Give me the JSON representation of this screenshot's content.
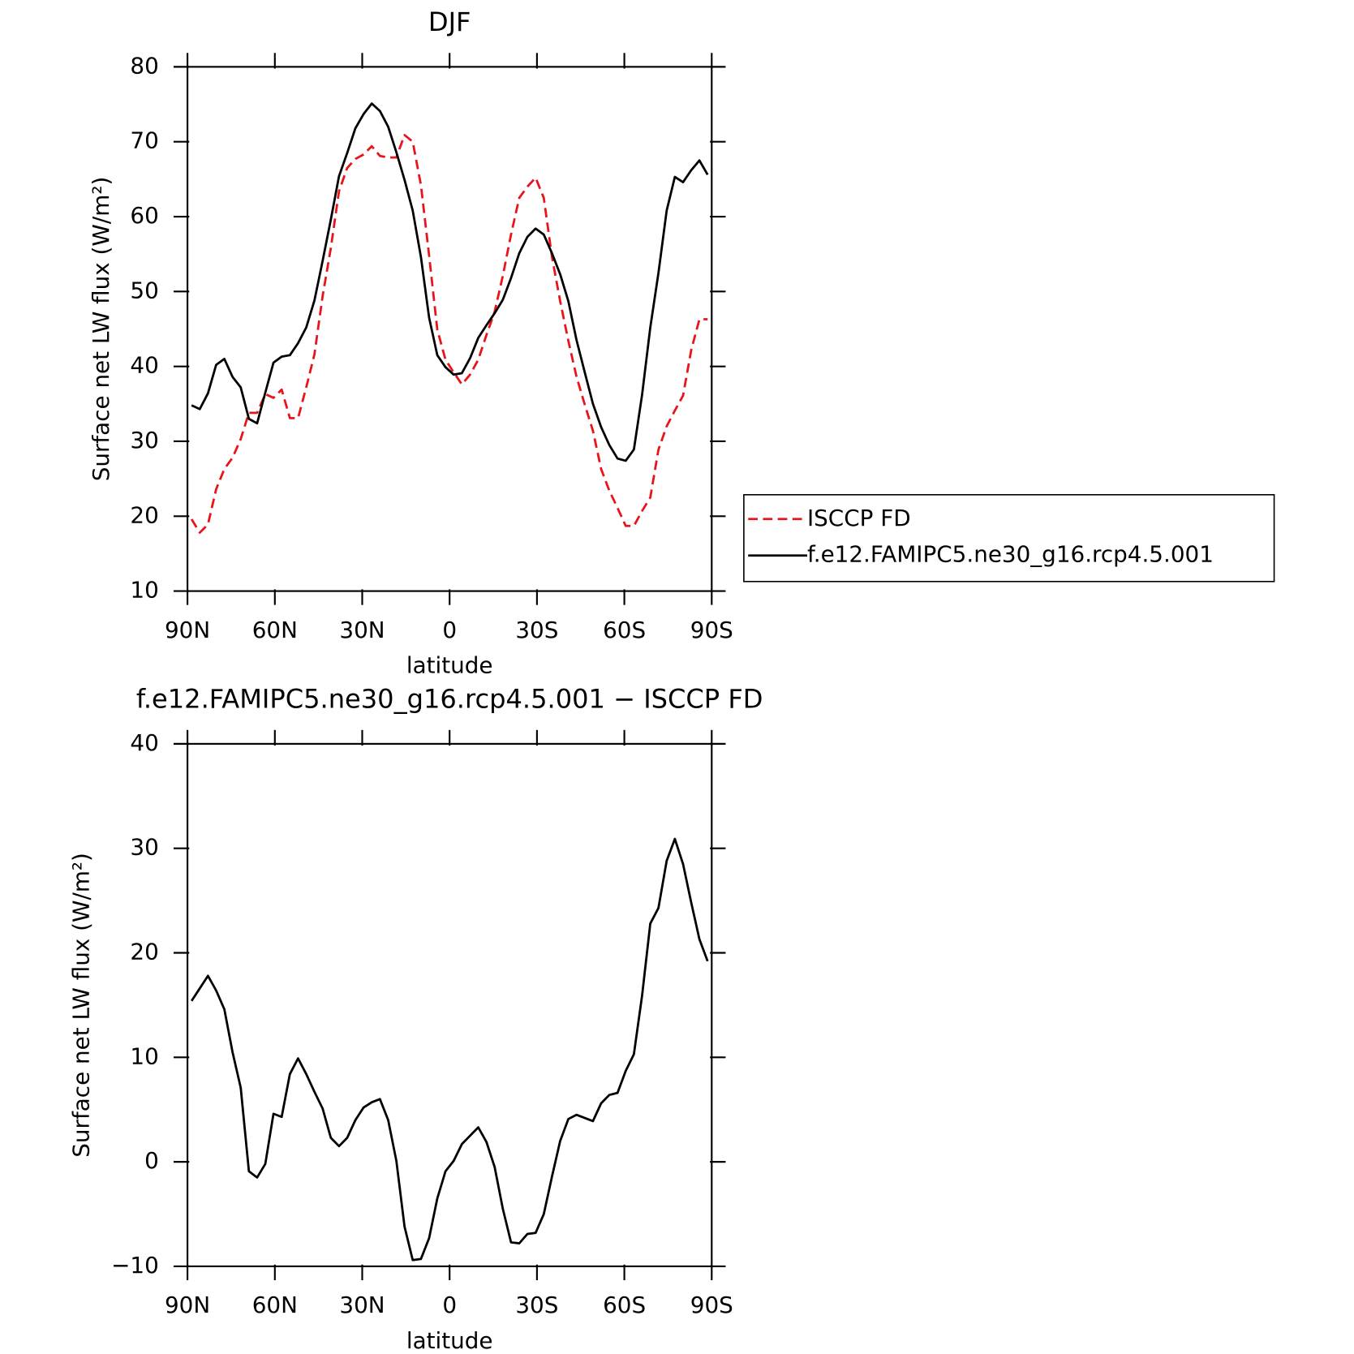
{
  "chart_data": [
    {
      "type": "line",
      "title": "DJF",
      "xlabel": "latitude",
      "ylabel": "Surface net LW flux (W/m²)",
      "x": [
        88.59,
        85.78,
        82.97,
        80.16,
        77.34,
        74.53,
        71.72,
        68.91,
        66.09,
        63.28,
        60.47,
        57.66,
        54.84,
        52.03,
        49.22,
        46.41,
        43.59,
        40.78,
        37.97,
        35.16,
        32.34,
        29.53,
        26.72,
        23.91,
        21.09,
        18.28,
        15.47,
        12.66,
        9.84,
        7.03,
        4.22,
        1.41,
        -1.41,
        -4.22,
        -7.03,
        -9.84,
        -12.66,
        -15.47,
        -18.28,
        -21.09,
        -23.91,
        -26.72,
        -29.53,
        -32.34,
        -35.16,
        -37.97,
        -40.78,
        -43.59,
        -46.41,
        -49.22,
        -52.03,
        -54.84,
        -57.66,
        -60.47,
        -63.28,
        -66.09,
        -68.91,
        -71.72,
        -74.53,
        -77.34,
        -80.16,
        -82.97,
        -85.78,
        -88.59
      ],
      "series": [
        {
          "name": "ISCCP FD",
          "color": "#e8141b",
          "linestyle": "dashed",
          "values": [
            19.6,
            17.8,
            18.9,
            23.6,
            26.3,
            27.8,
            30.3,
            33.8,
            33.8,
            36.3,
            35.8,
            36.9,
            33.1,
            33.1,
            37.2,
            41.6,
            49.4,
            55.8,
            63.4,
            66.5,
            67.7,
            68.3,
            69.4,
            68.1,
            67.9,
            67.9,
            70.9,
            70.0,
            64.2,
            54.8,
            44.9,
            40.9,
            39.2,
            37.6,
            38.9,
            40.9,
            44.2,
            47.3,
            52.1,
            57.6,
            62.5,
            64.0,
            65.2,
            62.5,
            54.6,
            48.7,
            43.4,
            38.6,
            34.9,
            31.4,
            26.3,
            23.4,
            21.1,
            18.7,
            18.7,
            20.7,
            22.5,
            28.9,
            32.0,
            34.1,
            36.1,
            42.2,
            46.3,
            46.3
          ]
        },
        {
          "name": "f.e12.FAMIPC5.ne30_g16.rcp4.5.001",
          "color": "#000000",
          "linestyle": "solid",
          "values": [
            34.8,
            34.3,
            36.4,
            40.2,
            41.0,
            38.6,
            37.2,
            33.0,
            32.4,
            36.5,
            40.5,
            41.3,
            41.5,
            43.1,
            45.2,
            48.8,
            54.1,
            59.6,
            65.4,
            68.5,
            71.8,
            73.7,
            75.1,
            74.1,
            72.0,
            68.6,
            64.9,
            60.8,
            54.6,
            46.5,
            41.5,
            39.9,
            38.9,
            39.1,
            41.1,
            43.8,
            45.5,
            47.1,
            48.9,
            51.8,
            55.1,
            57.3,
            58.4,
            57.6,
            55.1,
            52.3,
            48.7,
            43.5,
            39.2,
            35.0,
            31.9,
            29.5,
            27.7,
            27.4,
            28.9,
            36.2,
            45.2,
            52.5,
            60.8,
            65.3,
            64.6,
            66.2,
            67.5,
            65.6
          ]
        }
      ],
      "xlim": [
        90,
        -90
      ],
      "xticks": [
        {
          "value": 90,
          "label": "90N"
        },
        {
          "value": 60,
          "label": "60N"
        },
        {
          "value": 30,
          "label": "30N"
        },
        0,
        {
          "value": -30,
          "label": "30S"
        },
        {
          "value": -60,
          "label": "60S"
        },
        {
          "value": -90,
          "label": "90S"
        }
      ],
      "ylim": [
        10,
        80
      ],
      "yticks": [
        10,
        20,
        30,
        40,
        50,
        60,
        70,
        80
      ],
      "legend": "outside-right"
    },
    {
      "type": "line",
      "title": "f.e12.FAMIPC5.ne30_g16.rcp4.5.001 − ISCCP FD",
      "xlabel": "latitude",
      "ylabel": "Surface net LW flux (W/m²)",
      "x": [
        88.59,
        85.78,
        82.97,
        80.16,
        77.34,
        74.53,
        71.72,
        68.91,
        66.09,
        63.28,
        60.47,
        57.66,
        54.84,
        52.03,
        49.22,
        46.41,
        43.59,
        40.78,
        37.97,
        35.16,
        32.34,
        29.53,
        26.72,
        23.91,
        21.09,
        18.28,
        15.47,
        12.66,
        9.84,
        7.03,
        4.22,
        1.41,
        -1.41,
        -4.22,
        -7.03,
        -9.84,
        -12.66,
        -15.47,
        -18.28,
        -21.09,
        -23.91,
        -26.72,
        -29.53,
        -32.34,
        -35.16,
        -37.97,
        -40.78,
        -43.59,
        -46.41,
        -49.22,
        -52.03,
        -54.84,
        -57.66,
        -60.47,
        -63.28,
        -66.09,
        -68.91,
        -71.72,
        -74.53,
        -77.34,
        -80.16,
        -82.97,
        -85.78,
        -88.59
      ],
      "series": [
        {
          "color": "#000000",
          "linestyle": "solid",
          "values": [
            15.4,
            16.6,
            17.8,
            16.4,
            14.6,
            10.5,
            7.1,
            -0.9,
            -1.5,
            -0.2,
            4.6,
            4.3,
            8.4,
            9.9,
            8.4,
            6.7,
            5.1,
            2.3,
            1.5,
            2.3,
            4.0,
            5.2,
            5.7,
            6.0,
            4.0,
            0.1,
            -6.2,
            -9.4,
            -9.3,
            -7.3,
            -3.5,
            -0.9,
            0.1,
            1.7,
            2.5,
            3.3,
            1.9,
            -0.5,
            -4.5,
            -7.7,
            -7.8,
            -6.9,
            -6.8,
            -5.0,
            -1.4,
            2.0,
            4.1,
            4.5,
            4.2,
            3.9,
            5.6,
            6.4,
            6.6,
            8.7,
            10.3,
            15.9,
            22.8,
            24.3,
            28.8,
            30.9,
            28.5,
            24.8,
            21.3,
            19.2
          ]
        }
      ],
      "xlim": [
        90,
        -90
      ],
      "xticks": [
        {
          "value": 90,
          "label": "90N"
        },
        {
          "value": 60,
          "label": "60N"
        },
        {
          "value": 30,
          "label": "30N"
        },
        0,
        {
          "value": -30,
          "label": "30S"
        },
        {
          "value": -60,
          "label": "60S"
        },
        {
          "value": -90,
          "label": "90S"
        }
      ],
      "ylim": [
        -10,
        40
      ],
      "yticks": [
        {
          "value": -10,
          "label": "−10"
        },
        0,
        10,
        20,
        30,
        40
      ]
    }
  ]
}
